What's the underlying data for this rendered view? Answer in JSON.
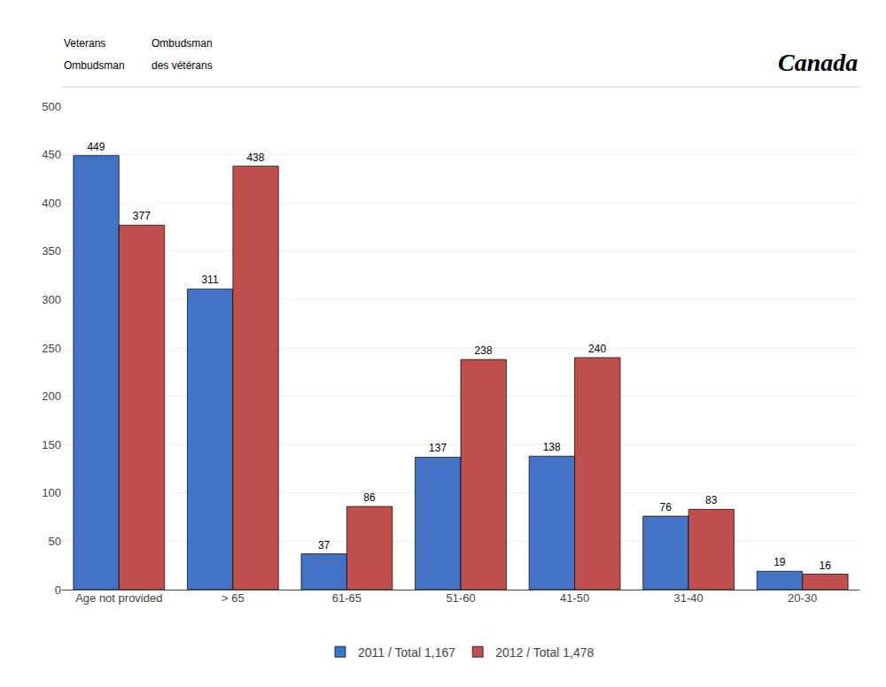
{
  "chart_data": {
    "type": "bar",
    "annotations": [
      "Veterans",
      "Ombudsman",
      "Ombudsman",
      "des vétérans",
      "Canada"
    ],
    "categories": [
      "Age not provided",
      "> 65",
      "61-65",
      "51-60",
      "41-50",
      "31-40",
      "20-30"
    ],
    "series": [
      {
        "name": "2011 / Total 1,167",
        "color": "#4472C4",
        "values": [
          449,
          311,
          37,
          137,
          138,
          76,
          19
        ]
      },
      {
        "name": "2012 / Total 1,478",
        "color": "#C0504D",
        "values": [
          377,
          438,
          86,
          238,
          240,
          83,
          16
        ]
      }
    ],
    "ylim": [
      0,
      500
    ],
    "yticks": [
      0,
      50,
      100,
      150,
      200,
      250,
      300,
      350,
      400,
      450,
      500
    ],
    "grid": true,
    "legend": "bottom",
    "data_labels": true
  }
}
